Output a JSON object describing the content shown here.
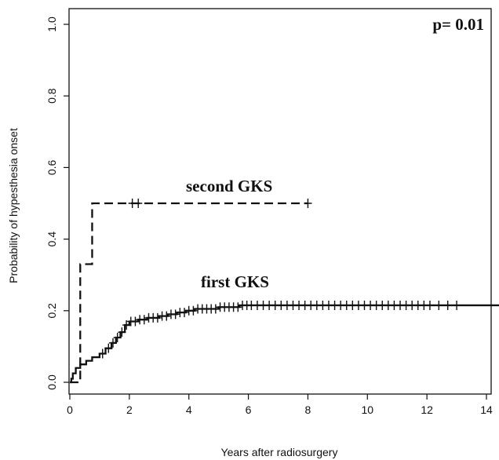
{
  "chart_data": {
    "type": "line",
    "subtype": "kaplan-meier cumulative incidence (step)",
    "title": "",
    "xlabel": "Years after radiosurgery",
    "ylabel": "Probability of hypesthesia onset",
    "xlim": [
      0,
      15
    ],
    "ylim": [
      0,
      1.0
    ],
    "xticks": [
      0,
      2,
      4,
      6,
      8,
      10,
      12,
      14
    ],
    "yticks": [
      0.0,
      0.2,
      0.4,
      0.6,
      0.8,
      1.0
    ],
    "ytick_labels": [
      "0.0",
      "0.2",
      "0.4",
      "0.6",
      "0.8",
      "1.0"
    ],
    "grid": false,
    "annotations": {
      "p_value": "p= 0.01",
      "second_label": "second GKS",
      "first_label": "first GKS"
    },
    "series": [
      {
        "label_ref": "second_label",
        "style": "dashed",
        "color": "#111111",
        "steps": [
          [
            0,
            0
          ],
          [
            0.35,
            0.33
          ],
          [
            0.75,
            0.5
          ],
          [
            8.0,
            0.5
          ]
        ],
        "censor": [
          2.1,
          2.3,
          8.0
        ]
      },
      {
        "label_ref": "first_label",
        "style": "solid",
        "color": "#111111",
        "steps": [
          [
            0,
            0
          ],
          [
            0.05,
            0.01
          ],
          [
            0.1,
            0.025
          ],
          [
            0.2,
            0.04
          ],
          [
            0.35,
            0.05
          ],
          [
            0.55,
            0.06
          ],
          [
            0.75,
            0.07
          ],
          [
            1.0,
            0.08
          ],
          [
            1.2,
            0.095
          ],
          [
            1.4,
            0.11
          ],
          [
            1.55,
            0.125
          ],
          [
            1.7,
            0.14
          ],
          [
            1.85,
            0.16
          ],
          [
            2.0,
            0.17
          ],
          [
            2.3,
            0.175
          ],
          [
            2.6,
            0.18
          ],
          [
            3.0,
            0.185
          ],
          [
            3.3,
            0.19
          ],
          [
            3.6,
            0.195
          ],
          [
            3.9,
            0.2
          ],
          [
            4.2,
            0.205
          ],
          [
            5.0,
            0.21
          ],
          [
            5.7,
            0.215
          ],
          [
            14.6,
            0.215
          ]
        ],
        "censor": [
          1.1,
          1.3,
          1.45,
          1.6,
          1.75,
          1.9,
          2.05,
          2.2,
          2.35,
          2.5,
          2.65,
          2.8,
          2.95,
          3.1,
          3.25,
          3.4,
          3.55,
          3.7,
          3.85,
          4.0,
          4.15,
          4.3,
          4.45,
          4.6,
          4.75,
          4.9,
          5.05,
          5.2,
          5.35,
          5.5,
          5.65,
          5.8,
          5.95,
          6.1,
          6.3,
          6.5,
          6.7,
          6.9,
          7.1,
          7.3,
          7.5,
          7.7,
          7.9,
          8.1,
          8.3,
          8.5,
          8.7,
          8.9,
          9.1,
          9.3,
          9.5,
          9.7,
          9.9,
          10.1,
          10.3,
          10.5,
          10.7,
          10.9,
          11.1,
          11.3,
          11.5,
          11.7,
          11.9,
          12.1,
          12.4,
          12.7,
          13.0,
          14.6
        ]
      }
    ]
  }
}
